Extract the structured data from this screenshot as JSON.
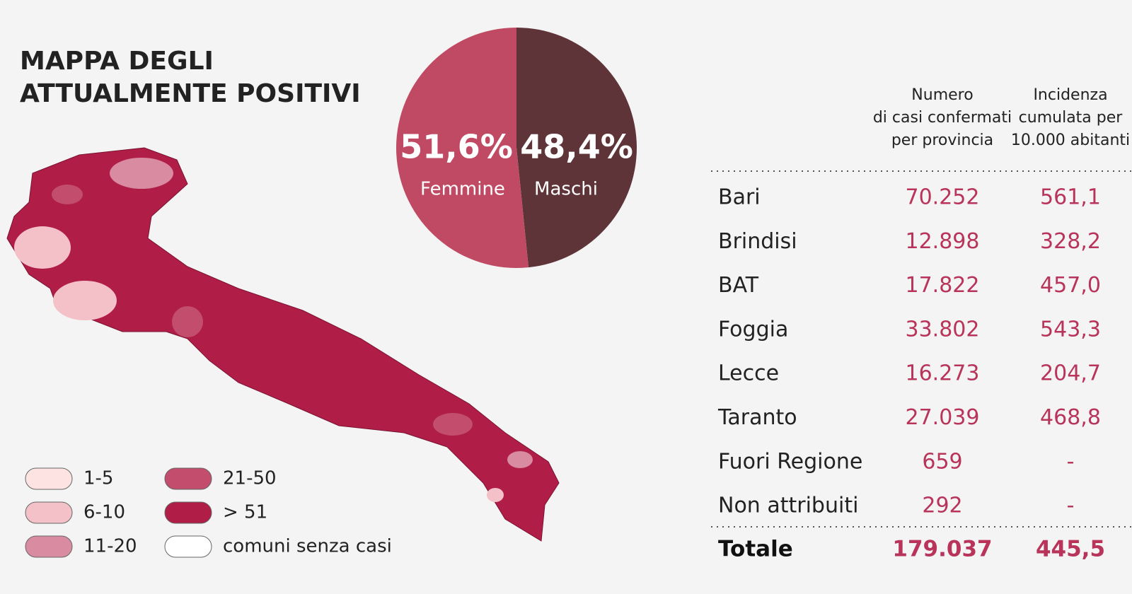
{
  "map": {
    "title": [
      "MAPPA DEGLI",
      "ATTUALMENTE POSITIVI"
    ],
    "legend": [
      {
        "label": "1-5",
        "color": "#fde4e2"
      },
      {
        "label": "6-10",
        "color": "#f4c1c8"
      },
      {
        "label": "11-20",
        "color": "#d88ba1"
      },
      {
        "label": "21-50",
        "color": "#c24d6d"
      },
      {
        "label": "> 51",
        "color": "#b01e48"
      },
      {
        "label": "comuni senza casi",
        "color": "#ffffff"
      }
    ]
  },
  "chart_data": {
    "type": "pie",
    "categories": [
      "Femmine",
      "Maschi"
    ],
    "values": [
      51.6,
      48.4
    ],
    "value_labels": [
      "51,6%",
      "48,4%"
    ],
    "colors": [
      "#c04a63",
      "#5e3439"
    ]
  },
  "table": {
    "headers": [
      [
        "Numero",
        "di casi confermati",
        "per provincia"
      ],
      [
        "Incidenza",
        "cumulata per",
        "10.000 abitanti"
      ]
    ],
    "rows": [
      [
        "Bari",
        "70.252",
        "561,1"
      ],
      [
        "Brindisi",
        "12.898",
        "328,2"
      ],
      [
        "BAT",
        "17.822",
        "457,0"
      ],
      [
        "Foggia",
        "33.802",
        "543,3"
      ],
      [
        "Lecce",
        "16.273",
        "204,7"
      ],
      [
        "Taranto",
        "27.039",
        "468,8"
      ],
      [
        "Fuori Regione",
        "659",
        "-"
      ],
      [
        "Non attribuiti",
        "292",
        "-"
      ]
    ],
    "total": [
      "Totale",
      "179.037",
      "445,5"
    ]
  }
}
